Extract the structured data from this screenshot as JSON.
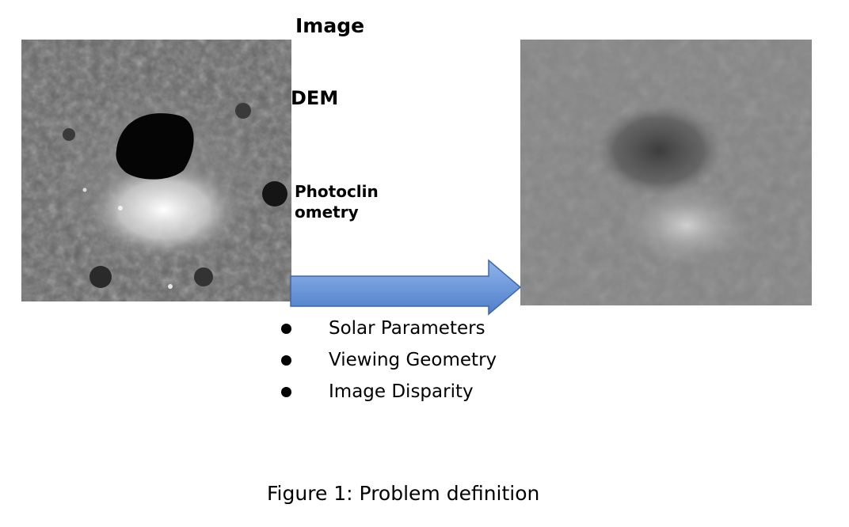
{
  "labels": {
    "image": "Image",
    "dem": "DEM",
    "photoclinometry_line1": "Photoclin",
    "photoclinometry_line2": "ometry"
  },
  "bullets": [
    "Solar Parameters",
    "Viewing Geometry",
    "Image Disparity"
  ],
  "caption": "Figure 1: Problem definition",
  "colors": {
    "arrow_fill_top": "#8FB4E8",
    "arrow_fill_bottom": "#4F7FCC",
    "arrow_stroke": "#3F67A8"
  }
}
